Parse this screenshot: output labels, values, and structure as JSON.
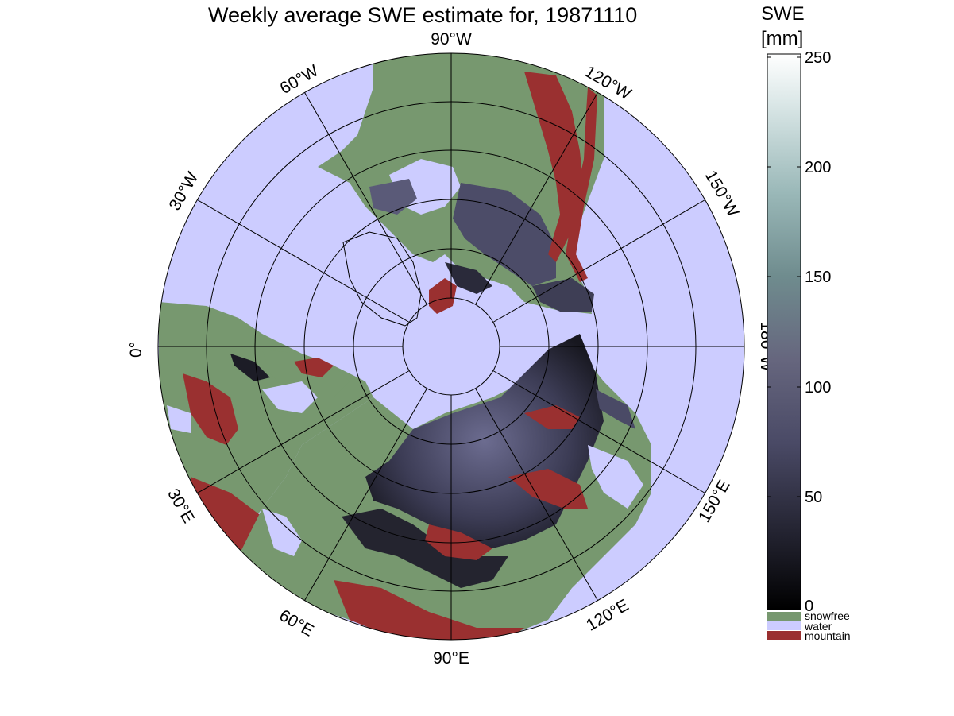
{
  "title": "Weekly average SWE estimate for, 19871110",
  "colorbar": {
    "title_line1": "SWE",
    "title_line2": "[mm]",
    "ticks": [
      "250",
      "200",
      "150",
      "100",
      "50",
      "0"
    ]
  },
  "longitude_labels": {
    "lon_90w": "90°W",
    "lon_120w": "120°W",
    "lon_150w": "150°W",
    "lon_180w": "180°W",
    "lon_150e": "150°E",
    "lon_120e": "120°E",
    "lon_90e": "90°E",
    "lon_60e": "60°E",
    "lon_30e": "30°E",
    "lon_0": "0°",
    "lon_30w": "30°W",
    "lon_60w": "60°W"
  },
  "legend": {
    "snowfree": "snowfree",
    "water": "water",
    "mountain": "mountain"
  },
  "colors": {
    "snowfree": "#77986f",
    "water": "#ccccff",
    "mountain": "#9a3030",
    "snow_low": "#050508",
    "snow_mid": "#55557a",
    "snow_high": "#ffffff"
  }
}
